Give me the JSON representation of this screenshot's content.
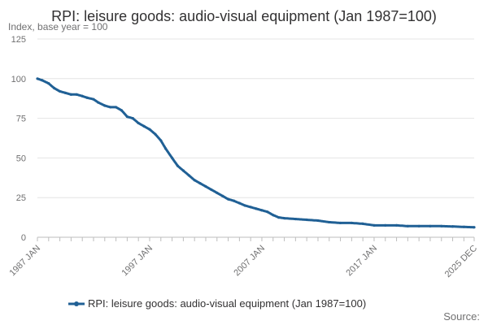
{
  "chart_data": {
    "type": "line",
    "title": "RPI: leisure goods: audio-visual equipment (Jan 1987=100)",
    "ylabel": "Index, base year = 100",
    "ylim": [
      0,
      125
    ],
    "yticks": [
      0,
      25,
      50,
      75,
      100,
      125
    ],
    "xlabels": [
      "1987 JAN",
      "1997 JAN",
      "2007 JAN",
      "2017 JAN",
      "2025 DEC"
    ],
    "x_range": [
      "1987-01",
      "2025-12"
    ],
    "grid": true,
    "legend_position": "bottom-center",
    "color": "#206095",
    "series": [
      {
        "name": "RPI: leisure goods: audio-visual equipment (Jan 1987=100)",
        "points": [
          [
            "1987-01",
            100
          ],
          [
            "1987-06",
            99
          ],
          [
            "1988-01",
            97
          ],
          [
            "1988-07",
            94
          ],
          [
            "1989-01",
            92
          ],
          [
            "1989-07",
            91
          ],
          [
            "1990-01",
            90
          ],
          [
            "1990-07",
            90
          ],
          [
            "1991-01",
            89
          ],
          [
            "1991-06",
            88
          ],
          [
            "1992-01",
            87
          ],
          [
            "1992-06",
            85
          ],
          [
            "1993-01",
            83
          ],
          [
            "1993-07",
            82
          ],
          [
            "1994-01",
            82
          ],
          [
            "1994-07",
            80
          ],
          [
            "1995-01",
            76
          ],
          [
            "1995-07",
            75
          ],
          [
            "1996-01",
            72
          ],
          [
            "1996-07",
            70
          ],
          [
            "1997-01",
            68
          ],
          [
            "1997-07",
            65
          ],
          [
            "1998-01",
            61
          ],
          [
            "1998-06",
            56
          ],
          [
            "1999-01",
            50
          ],
          [
            "1999-07",
            45
          ],
          [
            "2000-01",
            42
          ],
          [
            "2000-07",
            39
          ],
          [
            "2001-01",
            36
          ],
          [
            "2001-07",
            34
          ],
          [
            "2002-01",
            32
          ],
          [
            "2002-07",
            30
          ],
          [
            "2003-01",
            28
          ],
          [
            "2003-07",
            26
          ],
          [
            "2004-01",
            24
          ],
          [
            "2004-07",
            23
          ],
          [
            "2005-01",
            21.5
          ],
          [
            "2005-07",
            20
          ],
          [
            "2006-01",
            19
          ],
          [
            "2006-07",
            18
          ],
          [
            "2007-01",
            17
          ],
          [
            "2007-07",
            16
          ],
          [
            "2008-01",
            14
          ],
          [
            "2008-07",
            12.5
          ],
          [
            "2009-01",
            12
          ],
          [
            "2010-01",
            11.5
          ],
          [
            "2011-01",
            11
          ],
          [
            "2012-01",
            10.5
          ],
          [
            "2013-01",
            9.5
          ],
          [
            "2014-01",
            9
          ],
          [
            "2015-01",
            9
          ],
          [
            "2016-01",
            8.5
          ],
          [
            "2017-01",
            7.5
          ],
          [
            "2018-01",
            7.5
          ],
          [
            "2019-01",
            7.5
          ],
          [
            "2020-01",
            7
          ],
          [
            "2021-01",
            7
          ],
          [
            "2022-01",
            7
          ],
          [
            "2023-01",
            7
          ],
          [
            "2024-01",
            6.8
          ],
          [
            "2025-01",
            6.5
          ],
          [
            "2025-12",
            6.3
          ]
        ]
      }
    ]
  },
  "footer": {
    "source_label": "Source:"
  }
}
